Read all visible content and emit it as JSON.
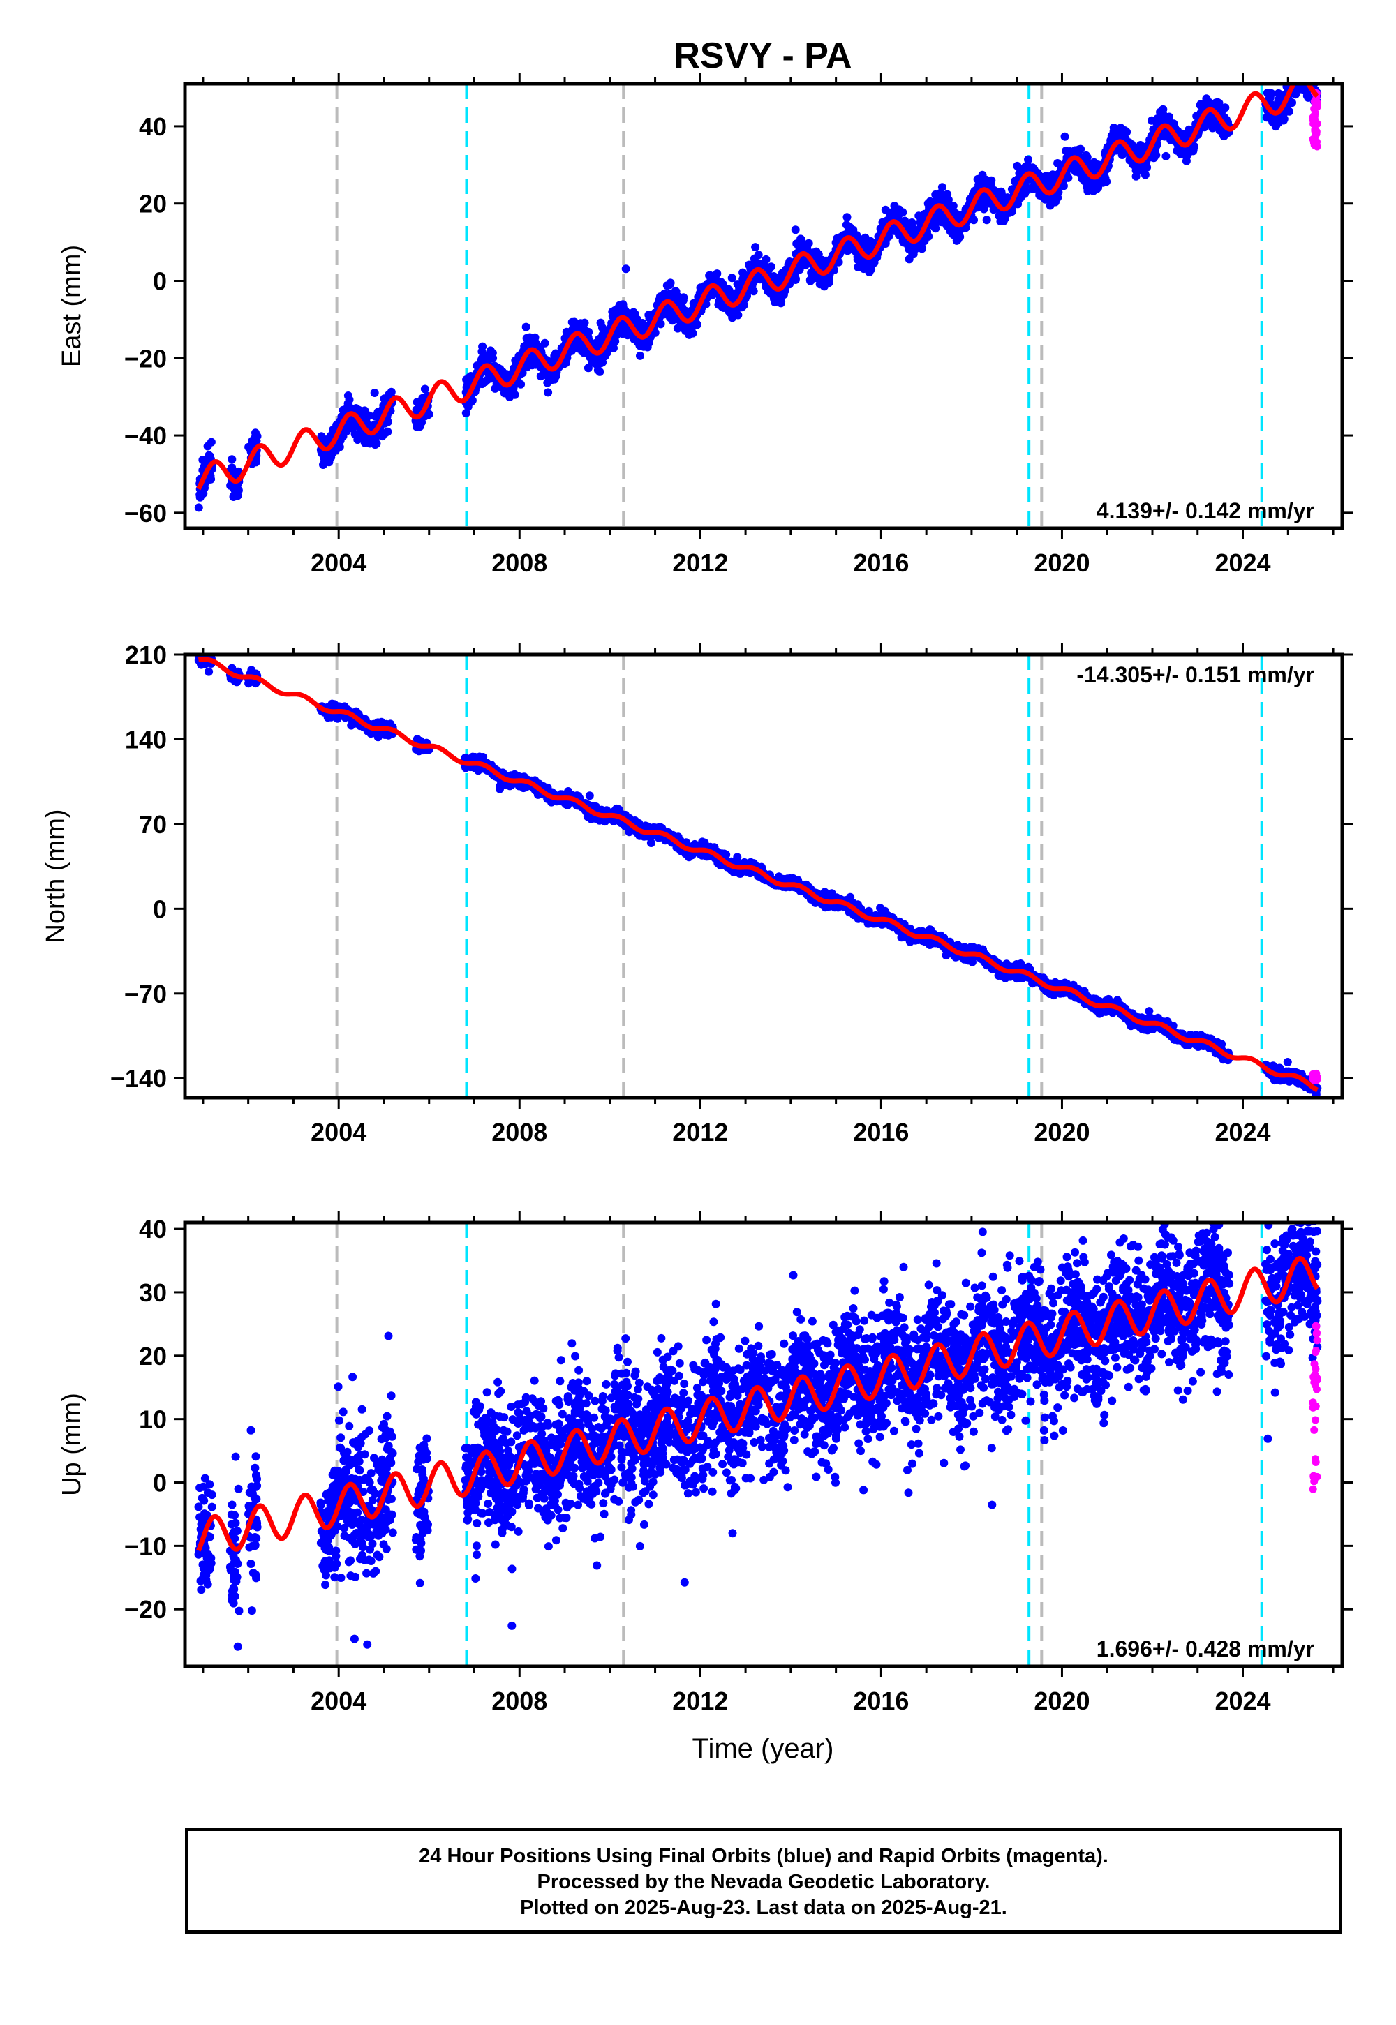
{
  "title": "RSVY - PA",
  "xlabel": "Time (year)",
  "footer": {
    "line1": "24 Hour Positions Using Final Orbits (blue) and Rapid Orbits (magenta).",
    "line2": "Processed by the Nevada Geodetic Laboratory.",
    "line3": "Plotted on 2025-Aug-23. Last data on 2025-Aug-21."
  },
  "colors": {
    "final": "#0000ff",
    "rapid": "#ff00ff",
    "model": "#ff0000",
    "equipment_change": "#00e5ff",
    "other_event": "#bbbbbb"
  },
  "chart_data": [
    {
      "type": "scatter",
      "component": "east",
      "ylabel": "East (mm)",
      "xlim": [
        2000.6,
        2026.2
      ],
      "ylim": [
        -64,
        51
      ],
      "x_ticks": [
        2004,
        2008,
        2012,
        2016,
        2020,
        2024
      ],
      "y_ticks": [
        -60,
        -40,
        -20,
        0,
        20,
        40
      ],
      "rate_label": "4.139+/- 0.142 mm/yr",
      "rate_position": "bottom-right",
      "equipment_change_years": [
        2006.83,
        2019.27,
        2024.42
      ],
      "other_event_years": [
        2003.96,
        2010.3,
        2019.55
      ],
      "data_segments": [
        [
          2000.9,
          2001.2
        ],
        [
          2001.6,
          2001.8
        ],
        [
          2002.0,
          2002.2
        ],
        [
          2003.6,
          2005.2
        ],
        [
          2005.7,
          2006.0
        ],
        [
          2006.8,
          2023.7
        ],
        [
          2024.5,
          2025.65
        ]
      ],
      "model": {
        "trend_rate": 4.139,
        "value_at_2000": -55.5,
        "annual_amplitude": 3.5,
        "annual_phase": 0.0
      },
      "rapid": {
        "x_range": [
          2025.55,
          2025.65
        ],
        "y_range": [
          34,
          49
        ]
      }
    },
    {
      "type": "scatter",
      "component": "north",
      "ylabel": "North (mm)",
      "xlim": [
        2000.6,
        2026.2
      ],
      "ylim": [
        -156,
        210
      ],
      "x_ticks": [
        2004,
        2008,
        2012,
        2016,
        2020,
        2024
      ],
      "y_ticks": [
        -140,
        -70,
        0,
        70,
        140,
        210
      ],
      "rate_label": "-14.305+/- 0.151 mm/yr",
      "rate_position": "top-right",
      "equipment_change_years": [
        2006.83,
        2019.27,
        2024.42
      ],
      "other_event_years": [
        2003.96,
        2010.3,
        2019.55
      ],
      "data_segments": [
        [
          2000.9,
          2001.2
        ],
        [
          2001.6,
          2001.8
        ],
        [
          2002.0,
          2002.2
        ],
        [
          2003.6,
          2005.2
        ],
        [
          2005.7,
          2006.0
        ],
        [
          2006.8,
          2023.7
        ],
        [
          2024.5,
          2025.65
        ]
      ],
      "model": {
        "trend_rate": -14.305,
        "value_at_2000": 219.5,
        "annual_amplitude": 2.5,
        "annual_phase": 0.3
      },
      "rapid": {
        "x_range": [
          2025.55,
          2025.65
        ],
        "y_range": [
          -142,
          -136
        ]
      }
    },
    {
      "type": "scatter",
      "component": "up",
      "ylabel": "Up (mm)",
      "xlim": [
        2000.6,
        2026.2
      ],
      "ylim": [
        -29,
        41
      ],
      "x_ticks": [
        2004,
        2008,
        2012,
        2016,
        2020,
        2024
      ],
      "y_ticks": [
        -20,
        -10,
        0,
        10,
        20,
        30,
        40
      ],
      "rate_label": "1.696+/- 0.428 mm/yr",
      "rate_position": "bottom-right",
      "equipment_change_years": [
        2006.83,
        2019.27,
        2024.42
      ],
      "other_event_years": [
        2003.96,
        2010.3,
        2019.55
      ],
      "data_segments": [
        [
          2000.9,
          2001.2
        ],
        [
          2001.6,
          2001.8
        ],
        [
          2002.0,
          2002.2
        ],
        [
          2003.6,
          2005.2
        ],
        [
          2005.7,
          2006.0
        ],
        [
          2006.8,
          2023.7
        ],
        [
          2024.5,
          2025.65
        ]
      ],
      "model": {
        "trend_rate": 1.696,
        "value_at_2000": -10.5,
        "annual_amplitude": 3.0,
        "annual_phase": 0.0
      },
      "rapid": {
        "x_range": [
          2025.55,
          2025.65
        ],
        "y_range": [
          -3,
          25
        ]
      }
    }
  ]
}
